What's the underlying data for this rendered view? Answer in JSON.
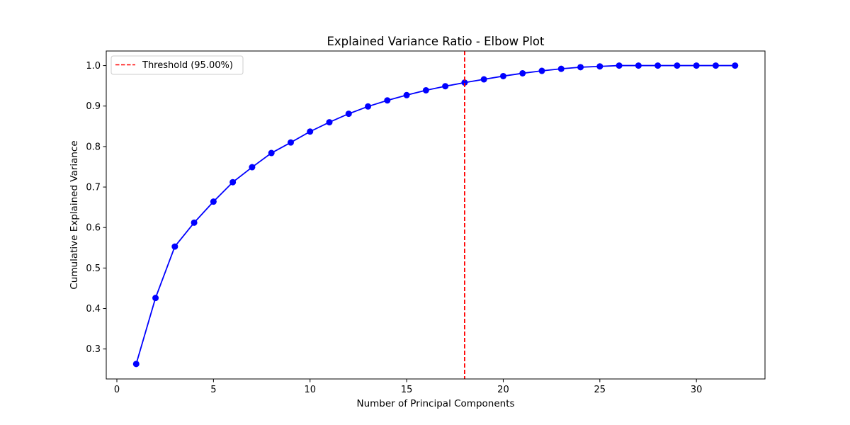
{
  "chart_data": {
    "type": "line",
    "title": "Explained Variance Ratio - Elbow Plot",
    "xlabel": "Number of Principal Components",
    "ylabel": "Cumulative Explained Variance",
    "xlim": [
      -0.55,
      33.55
    ],
    "ylim": [
      0.226,
      1.036
    ],
    "x_ticks": [
      0,
      5,
      10,
      15,
      20,
      25,
      30
    ],
    "y_ticks": [
      0.3,
      0.4,
      0.5,
      0.6,
      0.7,
      0.8,
      0.9,
      1.0
    ],
    "x_tick_labels": [
      "0",
      "5",
      "10",
      "15",
      "20",
      "25",
      "30"
    ],
    "y_tick_labels": [
      "0.3",
      "0.4",
      "0.5",
      "0.6",
      "0.7",
      "0.8",
      "0.9",
      "1.0"
    ],
    "grid": false,
    "legend": {
      "placement": "top-left",
      "entries": [
        {
          "label": "Threshold (95.00%)",
          "style": "dashed-line",
          "color": "#ff0000"
        }
      ]
    },
    "series": [
      {
        "color": "#0000ff",
        "marker": "circle",
        "x": [
          1,
          2,
          3,
          4,
          5,
          6,
          7,
          8,
          9,
          10,
          11,
          12,
          13,
          14,
          15,
          16,
          17,
          18,
          19,
          20,
          21,
          22,
          23,
          24,
          25,
          26,
          27,
          28,
          29,
          30,
          31,
          32
        ],
        "y": [
          0.263,
          0.426,
          0.553,
          0.612,
          0.664,
          0.712,
          0.749,
          0.784,
          0.81,
          0.837,
          0.86,
          0.881,
          0.899,
          0.914,
          0.927,
          0.939,
          0.949,
          0.958,
          0.966,
          0.974,
          0.981,
          0.987,
          0.992,
          0.996,
          0.998,
          1.0,
          1.0,
          1.0,
          1.0,
          1.0,
          1.0,
          1.0
        ]
      }
    ],
    "vlines": [
      {
        "x": 18,
        "color": "#ff0000",
        "style": "dashed",
        "label": "Threshold (95.00%)"
      }
    ]
  }
}
